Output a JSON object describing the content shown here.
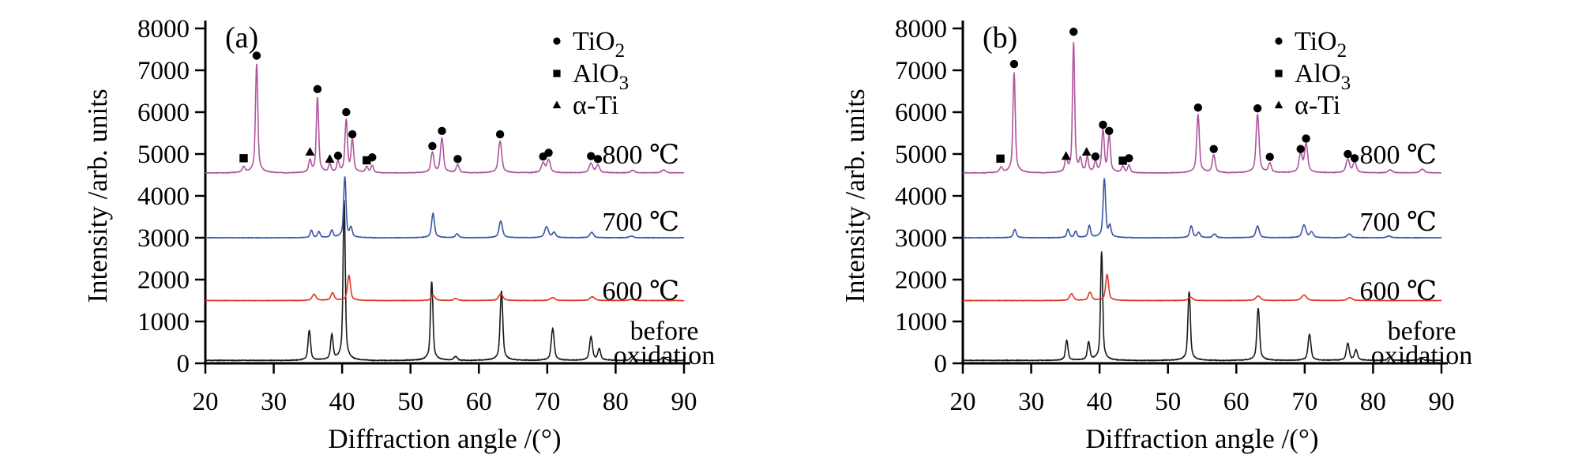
{
  "figure": {
    "background": "#ffffff",
    "axis_color": "#000000",
    "marker_color": "#000000",
    "ylabel": "Intensity /arb. units",
    "xlabel": "Diffraction angle /(°)",
    "xlim": [
      20,
      90
    ],
    "ylim": [
      0,
      8000
    ],
    "x_ticks": [
      20,
      30,
      40,
      50,
      60,
      70,
      80,
      90
    ],
    "y_ticks": [
      0,
      1000,
      2000,
      3000,
      4000,
      5000,
      6000,
      7000,
      8000
    ],
    "grid": false,
    "legend_position": "top-right-inside",
    "legend": [
      {
        "key": "TiO2",
        "symbol": "circle",
        "label": "TiO",
        "sub": "2"
      },
      {
        "key": "AlO3",
        "symbol": "square",
        "label": "AlO",
        "sub": "3"
      },
      {
        "key": "aTi",
        "symbol": "triangle",
        "label": "α-Ti",
        "sub": ""
      }
    ]
  },
  "chart_data": [
    {
      "type": "line",
      "panel_label": "(a)",
      "x_unit": "degrees 2-theta",
      "series": [
        {
          "name": "800 ℃",
          "color": "#b0559f",
          "baseline": 4550,
          "label_y": 5000,
          "noise": 11,
          "seed": 11,
          "peaks": [
            [
              25.6,
              130,
              0.35
            ],
            [
              27.5,
              2600,
              0.28
            ],
            [
              35.3,
              280,
              0.3
            ],
            [
              36.4,
              1800,
              0.28
            ],
            [
              38.2,
              200,
              0.28
            ],
            [
              39.4,
              250,
              0.28
            ],
            [
              40.6,
              1250,
              0.3
            ],
            [
              41.5,
              760,
              0.3
            ],
            [
              43.6,
              140,
              0.3
            ],
            [
              44.4,
              170,
              0.3
            ],
            [
              53.2,
              480,
              0.35
            ],
            [
              54.6,
              820,
              0.35
            ],
            [
              56.9,
              190,
              0.35
            ],
            [
              63.1,
              760,
              0.4
            ],
            [
              69.4,
              230,
              0.42
            ],
            [
              70.2,
              300,
              0.4
            ],
            [
              76.4,
              230,
              0.42
            ],
            [
              77.4,
              180,
              0.4
            ],
            [
              82.5,
              60,
              0.5
            ],
            [
              87.0,
              70,
              0.5
            ]
          ]
        },
        {
          "name": "700 ℃",
          "color": "#3a55a4",
          "baseline": 3000,
          "label_y": 3400,
          "noise": 9,
          "seed": 23,
          "peaks": [
            [
              35.5,
              180,
              0.3
            ],
            [
              36.6,
              140,
              0.3
            ],
            [
              38.5,
              170,
              0.3
            ],
            [
              40.4,
              1450,
              0.28
            ],
            [
              41.3,
              220,
              0.3
            ],
            [
              53.3,
              580,
              0.35
            ],
            [
              56.8,
              90,
              0.38
            ],
            [
              63.2,
              400,
              0.4
            ],
            [
              69.9,
              260,
              0.45
            ],
            [
              71.0,
              120,
              0.4
            ],
            [
              76.5,
              130,
              0.45
            ],
            [
              82.3,
              40,
              0.5
            ]
          ]
        },
        {
          "name": "600 ℃",
          "color": "#e03522",
          "baseline": 1500,
          "label_y": 1750,
          "noise": 8,
          "seed": 37,
          "peaks": [
            [
              35.9,
              150,
              0.45
            ],
            [
              38.6,
              180,
              0.4
            ],
            [
              41.0,
              600,
              0.35
            ],
            [
              53.3,
              130,
              0.45
            ],
            [
              56.6,
              50,
              0.45
            ],
            [
              63.2,
              160,
              0.5
            ],
            [
              70.8,
              70,
              0.55
            ],
            [
              76.6,
              90,
              0.55
            ],
            [
              82.3,
              30,
              0.5
            ]
          ]
        },
        {
          "name": "before oxidation",
          "label_lines": [
            "before",
            "oxidation"
          ],
          "color": "#1a1a1a",
          "baseline": 70,
          "noise": 13,
          "seed": 51,
          "peaks": [
            [
              35.2,
              720,
              0.3
            ],
            [
              38.5,
              590,
              0.3
            ],
            [
              40.3,
              3830,
              0.26
            ],
            [
              53.1,
              1880,
              0.3
            ],
            [
              56.6,
              90,
              0.4
            ],
            [
              63.3,
              1660,
              0.32
            ],
            [
              70.8,
              760,
              0.35
            ],
            [
              76.4,
              560,
              0.35
            ],
            [
              77.6,
              260,
              0.35
            ],
            [
              82.4,
              90,
              0.4
            ],
            [
              87.0,
              80,
              0.4
            ]
          ]
        }
      ],
      "markers": [
        [
          "AlO3",
          25.6,
          4900
        ],
        [
          "TiO2",
          27.5,
          7350
        ],
        [
          "aTi",
          35.3,
          5050
        ],
        [
          "TiO2",
          36.4,
          6550
        ],
        [
          "aTi",
          38.2,
          4880
        ],
        [
          "TiO2",
          39.4,
          4960
        ],
        [
          "TiO2",
          40.6,
          6000
        ],
        [
          "TiO2",
          41.5,
          5470
        ],
        [
          "AlO3",
          43.6,
          4850
        ],
        [
          "TiO2",
          44.4,
          4920
        ],
        [
          "TiO2",
          53.2,
          5190
        ],
        [
          "TiO2",
          54.6,
          5550
        ],
        [
          "TiO2",
          56.9,
          4880
        ],
        [
          "TiO2",
          63.1,
          5470
        ],
        [
          "TiO2",
          69.4,
          4940
        ],
        [
          "TiO2",
          70.2,
          5030
        ],
        [
          "TiO2",
          76.4,
          4950
        ],
        [
          "TiO2",
          77.4,
          4880
        ]
      ]
    },
    {
      "type": "line",
      "panel_label": "(b)",
      "x_unit": "degrees 2-theta",
      "series": [
        {
          "name": "800 ℃",
          "color": "#b0559f",
          "baseline": 4550,
          "label_y": 5000,
          "noise": 11,
          "seed": 63,
          "peaks": [
            [
              25.6,
              120,
              0.35
            ],
            [
              27.5,
              2400,
              0.28
            ],
            [
              35.1,
              300,
              0.3
            ],
            [
              36.2,
              3100,
              0.26
            ],
            [
              37.2,
              280,
              0.28
            ],
            [
              38.2,
              350,
              0.28
            ],
            [
              39.4,
              250,
              0.28
            ],
            [
              40.5,
              1000,
              0.3
            ],
            [
              41.4,
              880,
              0.3
            ],
            [
              43.4,
              150,
              0.3
            ],
            [
              44.3,
              180,
              0.3
            ],
            [
              54.4,
              1400,
              0.32
            ],
            [
              56.7,
              420,
              0.35
            ],
            [
              63.1,
              1400,
              0.35
            ],
            [
              64.9,
              220,
              0.35
            ],
            [
              69.4,
              430,
              0.4
            ],
            [
              70.2,
              680,
              0.38
            ],
            [
              76.3,
              320,
              0.42
            ],
            [
              77.3,
              250,
              0.4
            ],
            [
              82.5,
              70,
              0.5
            ],
            [
              87.2,
              90,
              0.5
            ]
          ]
        },
        {
          "name": "700 ℃",
          "color": "#3a55a4",
          "baseline": 3000,
          "label_y": 3400,
          "noise": 9,
          "seed": 77,
          "peaks": [
            [
              27.6,
              200,
              0.35
            ],
            [
              35.4,
              200,
              0.3
            ],
            [
              36.5,
              150,
              0.3
            ],
            [
              38.5,
              280,
              0.3
            ],
            [
              40.7,
              1400,
              0.3
            ],
            [
              41.5,
              250,
              0.3
            ],
            [
              53.4,
              280,
              0.35
            ],
            [
              54.5,
              120,
              0.35
            ],
            [
              56.8,
              90,
              0.4
            ],
            [
              63.1,
              280,
              0.4
            ],
            [
              69.9,
              300,
              0.45
            ],
            [
              71.0,
              130,
              0.4
            ],
            [
              76.5,
              90,
              0.5
            ],
            [
              82.3,
              40,
              0.5
            ]
          ]
        },
        {
          "name": "600 ℃",
          "color": "#e03522",
          "baseline": 1500,
          "label_y": 1750,
          "noise": 8,
          "seed": 89,
          "peaks": [
            [
              35.9,
              160,
              0.45
            ],
            [
              38.6,
              190,
              0.4
            ],
            [
              41.1,
              620,
              0.35
            ],
            [
              53.3,
              80,
              0.5
            ],
            [
              63.2,
              110,
              0.55
            ],
            [
              69.9,
              130,
              0.6
            ],
            [
              76.6,
              70,
              0.55
            ]
          ]
        },
        {
          "name": "before oxidation",
          "label_lines": [
            "before",
            "oxidation"
          ],
          "color": "#1a1a1a",
          "baseline": 70,
          "noise": 13,
          "seed": 97,
          "peaks": [
            [
              35.2,
              480,
              0.3
            ],
            [
              38.4,
              430,
              0.3
            ],
            [
              40.3,
              2600,
              0.26
            ],
            [
              53.1,
              1650,
              0.3
            ],
            [
              63.2,
              1250,
              0.32
            ],
            [
              70.7,
              620,
              0.35
            ],
            [
              76.3,
              400,
              0.35
            ],
            [
              77.5,
              240,
              0.35
            ],
            [
              82.4,
              80,
              0.4
            ],
            [
              87.0,
              70,
              0.4
            ]
          ]
        }
      ],
      "markers": [
        [
          "AlO3",
          25.5,
          4890
        ],
        [
          "TiO2",
          27.5,
          7150
        ],
        [
          "aTi",
          35.1,
          4950
        ],
        [
          "TiO2",
          36.2,
          7920
        ],
        [
          "aTi",
          38.1,
          5050
        ],
        [
          "TiO2",
          39.4,
          4940
        ],
        [
          "TiO2",
          40.5,
          5700
        ],
        [
          "TiO2",
          41.4,
          5550
        ],
        [
          "AlO3",
          43.4,
          4840
        ],
        [
          "TiO2",
          44.3,
          4900
        ],
        [
          "TiO2",
          54.4,
          6110
        ],
        [
          "TiO2",
          56.7,
          5120
        ],
        [
          "TiO2",
          63.1,
          6090
        ],
        [
          "TiO2",
          64.9,
          4930
        ],
        [
          "TiO2",
          69.4,
          5120
        ],
        [
          "TiO2",
          70.2,
          5370
        ],
        [
          "TiO2",
          76.3,
          5000
        ],
        [
          "TiO2",
          77.3,
          4900
        ]
      ]
    }
  ]
}
